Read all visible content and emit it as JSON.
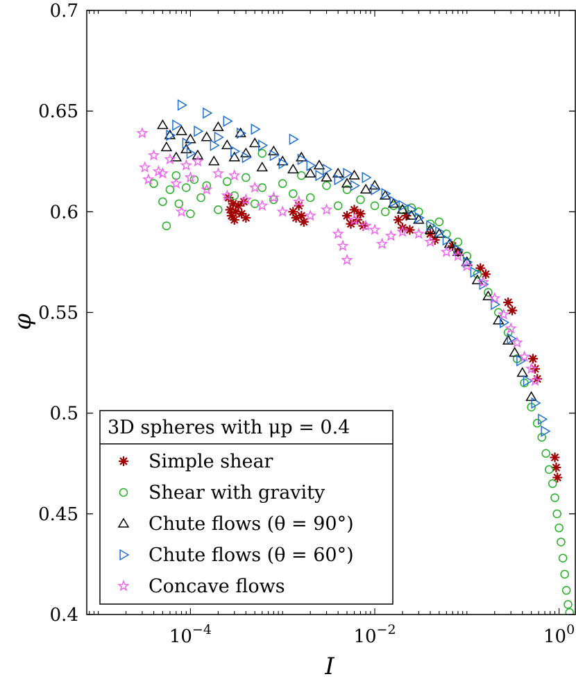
{
  "chart_data": {
    "type": "scatter",
    "title": "",
    "xlabel": "I",
    "ylabel": "φ",
    "xscale": "log",
    "xlim": [
      7.5e-06,
      1.5
    ],
    "ylim": [
      0.4,
      0.7
    ],
    "x_ticks": [
      {
        "value": 0.0001,
        "base": "10",
        "exp": "−4"
      },
      {
        "value": 0.01,
        "base": "10",
        "exp": "−2"
      },
      {
        "value": 1,
        "base": "10",
        "exp": "0"
      }
    ],
    "y_ticks": [
      {
        "value": 0.4,
        "label": "0.4"
      },
      {
        "value": 0.45,
        "label": "0.45"
      },
      {
        "value": 0.5,
        "label": "0.5"
      },
      {
        "value": 0.55,
        "label": "0.55"
      },
      {
        "value": 0.6,
        "label": "0.6"
      },
      {
        "value": 0.65,
        "label": "0.65"
      },
      {
        "value": 0.7,
        "label": "0.7"
      }
    ],
    "legend": {
      "title": "3D spheres with μp = 0.4",
      "position": "bottom-left"
    },
    "series": [
      {
        "name": "Simple shear",
        "marker": "asterisk",
        "color": "#a00000",
        "points": [
          [
            0.00026,
            0.607
          ],
          [
            0.00027,
            0.601
          ],
          [
            0.00028,
            0.598
          ],
          [
            0.00029,
            0.604
          ],
          [
            0.0003,
            0.596
          ],
          [
            0.00031,
            0.6
          ],
          [
            0.00033,
            0.603
          ],
          [
            0.00036,
            0.599
          ],
          [
            0.00038,
            0.605
          ],
          [
            0.0004,
            0.597
          ],
          [
            0.0013,
            0.6
          ],
          [
            0.0014,
            0.597
          ],
          [
            0.0015,
            0.603
          ],
          [
            0.0016,
            0.598
          ],
          [
            0.0017,
            0.595
          ],
          [
            0.005,
            0.598
          ],
          [
            0.0055,
            0.594
          ],
          [
            0.006,
            0.601
          ],
          [
            0.0065,
            0.596
          ],
          [
            0.007,
            0.599
          ],
          [
            0.0075,
            0.593
          ],
          [
            0.018,
            0.596
          ],
          [
            0.02,
            0.592
          ],
          [
            0.022,
            0.598
          ],
          [
            0.024,
            0.591
          ],
          [
            0.04,
            0.589
          ],
          [
            0.045,
            0.586
          ],
          [
            0.07,
            0.583
          ],
          [
            0.08,
            0.58
          ],
          [
            0.14,
            0.572
          ],
          [
            0.16,
            0.569
          ],
          [
            0.28,
            0.555
          ],
          [
            0.31,
            0.551
          ],
          [
            0.52,
            0.527
          ],
          [
            0.55,
            0.522
          ],
          [
            0.58,
            0.517
          ],
          [
            0.9,
            0.478
          ],
          [
            0.93,
            0.473
          ],
          [
            0.96,
            0.468
          ]
        ]
      },
      {
        "name": "Shear with gravity",
        "marker": "circle",
        "color": "#22b022",
        "points": [
          [
            4e-05,
            0.614
          ],
          [
            5e-05,
            0.605
          ],
          [
            5.5e-05,
            0.593
          ],
          [
            6e-05,
            0.611
          ],
          [
            7e-05,
            0.618
          ],
          [
            7.5e-05,
            0.604
          ],
          [
            9e-05,
            0.612
          ],
          [
            0.0001,
            0.599
          ],
          [
            0.00011,
            0.616
          ],
          [
            0.00013,
            0.607
          ],
          [
            0.00015,
            0.613
          ],
          [
            0.0002,
            0.601
          ],
          [
            0.00025,
            0.615
          ],
          [
            0.0003,
            0.608
          ],
          [
            0.0004,
            0.617
          ],
          [
            0.0005,
            0.604
          ],
          [
            0.0006,
            0.612
          ],
          [
            0.0008,
            0.606
          ],
          [
            0.001,
            0.614
          ],
          [
            0.0013,
            0.609
          ],
          [
            0.0016,
            0.618
          ],
          [
            0.002,
            0.607
          ],
          [
            0.003,
            0.613
          ],
          [
            0.004,
            0.603
          ],
          [
            0.005,
            0.611
          ],
          [
            0.0006,
            0.629
          ],
          [
            0.007,
            0.606
          ],
          [
            0.01,
            0.603
          ],
          [
            0.013,
            0.6
          ],
          [
            0.016,
            0.603
          ],
          [
            0.02,
            0.601
          ],
          [
            0.025,
            0.602
          ],
          [
            0.03,
            0.6
          ],
          [
            0.04,
            0.594
          ],
          [
            0.05,
            0.595
          ],
          [
            0.06,
            0.589
          ],
          [
            0.08,
            0.585
          ],
          [
            0.1,
            0.578
          ],
          [
            0.13,
            0.569
          ],
          [
            0.17,
            0.56
          ],
          [
            0.22,
            0.55
          ],
          [
            0.28,
            0.54
          ],
          [
            0.35,
            0.527
          ],
          [
            0.42,
            0.515
          ],
          [
            0.5,
            0.503
          ],
          [
            0.58,
            0.495
          ],
          [
            0.65,
            0.488
          ],
          [
            0.72,
            0.48
          ],
          [
            0.78,
            0.472
          ],
          [
            0.85,
            0.465
          ],
          [
            0.9,
            0.458
          ],
          [
            0.95,
            0.45
          ],
          [
            1.0,
            0.443
          ],
          [
            1.05,
            0.436
          ],
          [
            1.1,
            0.428
          ],
          [
            1.15,
            0.42
          ],
          [
            1.2,
            0.412
          ],
          [
            1.25,
            0.405
          ],
          [
            1.3,
            0.401
          ]
        ]
      },
      {
        "name": "Chute flows (θ = 90°)",
        "marker": "triangle-up",
        "color": "#000000",
        "points": [
          [
            5e-05,
            0.643
          ],
          [
            5.5e-05,
            0.632
          ],
          [
            6e-05,
            0.638
          ],
          [
            7e-05,
            0.627
          ],
          [
            8e-05,
            0.64
          ],
          [
            9e-05,
            0.631
          ],
          [
            0.0001,
            0.636
          ],
          [
            0.00012,
            0.628
          ],
          [
            0.00015,
            0.637
          ],
          [
            0.00018,
            0.625
          ],
          [
            0.0002,
            0.642
          ],
          [
            0.00025,
            0.633
          ],
          [
            0.0003,
            0.627
          ],
          [
            0.00035,
            0.639
          ],
          [
            0.0004,
            0.629
          ],
          [
            0.0005,
            0.634
          ],
          [
            0.0006,
            0.622
          ],
          [
            0.0008,
            0.63
          ],
          [
            0.001,
            0.625
          ],
          [
            0.0013,
            0.621
          ],
          [
            0.0016,
            0.627
          ],
          [
            0.002,
            0.619
          ],
          [
            0.0025,
            0.623
          ],
          [
            0.003,
            0.617
          ],
          [
            0.004,
            0.619
          ],
          [
            0.005,
            0.614
          ],
          [
            0.006,
            0.618
          ],
          [
            0.008,
            0.611
          ],
          [
            0.01,
            0.613
          ],
          [
            0.013,
            0.608
          ],
          [
            0.016,
            0.604
          ],
          [
            0.02,
            0.601
          ],
          [
            0.025,
            0.598
          ],
          [
            0.03,
            0.596
          ],
          [
            0.04,
            0.591
          ],
          [
            0.05,
            0.589
          ],
          [
            0.065,
            0.584
          ],
          [
            0.08,
            0.58
          ],
          [
            0.1,
            0.575
          ],
          [
            0.13,
            0.566
          ],
          [
            0.17,
            0.558
          ],
          [
            0.22,
            0.546
          ],
          [
            0.28,
            0.536
          ],
          [
            0.33,
            0.53
          ],
          [
            0.4,
            0.52
          ],
          [
            0.5,
            0.508
          ]
        ]
      },
      {
        "name": "Chute flows (θ = 60°)",
        "marker": "triangle-right",
        "color": "#1f6fd0",
        "points": [
          [
            6e-05,
            0.638
          ],
          [
            7e-05,
            0.643
          ],
          [
            8e-05,
            0.653
          ],
          [
            9e-05,
            0.634
          ],
          [
            0.0001,
            0.629
          ],
          [
            0.00012,
            0.64
          ],
          [
            0.00015,
            0.649
          ],
          [
            0.00018,
            0.633
          ],
          [
            0.0002,
            0.637
          ],
          [
            0.00025,
            0.645
          ],
          [
            0.0003,
            0.63
          ],
          [
            0.00035,
            0.639
          ],
          [
            0.0004,
            0.627
          ],
          [
            0.0005,
            0.641
          ],
          [
            0.0006,
            0.633
          ],
          [
            0.0008,
            0.628
          ],
          [
            0.001,
            0.624
          ],
          [
            0.0013,
            0.636
          ],
          [
            0.0016,
            0.626
          ],
          [
            0.002,
            0.623
          ],
          [
            0.0025,
            0.618
          ],
          [
            0.003,
            0.621
          ],
          [
            0.004,
            0.616
          ],
          [
            0.005,
            0.619
          ],
          [
            0.006,
            0.613
          ],
          [
            0.008,
            0.617
          ],
          [
            0.01,
            0.611
          ],
          [
            0.013,
            0.609
          ],
          [
            0.016,
            0.605
          ],
          [
            0.02,
            0.603
          ],
          [
            0.025,
            0.601
          ],
          [
            0.03,
            0.597
          ],
          [
            0.04,
            0.593
          ],
          [
            0.05,
            0.59
          ],
          [
            0.06,
            0.586
          ],
          [
            0.08,
            0.581
          ],
          [
            0.1,
            0.575
          ],
          [
            0.12,
            0.57
          ],
          [
            0.15,
            0.564
          ],
          [
            0.2,
            0.554
          ],
          [
            0.25,
            0.545
          ],
          [
            0.3,
            0.537
          ],
          [
            0.38,
            0.526
          ],
          [
            0.45,
            0.516
          ],
          [
            0.55,
            0.505
          ],
          [
            0.65,
            0.497
          ],
          [
            0.7,
            0.491
          ]
        ]
      },
      {
        "name": "Concave flows",
        "marker": "star",
        "color": "#ee66ee",
        "points": [
          [
            3e-05,
            0.639
          ],
          [
            3.2e-05,
            0.622
          ],
          [
            3.5e-05,
            0.616
          ],
          [
            4e-05,
            0.628
          ],
          [
            4.5e-05,
            0.62
          ],
          [
            5e-05,
            0.619
          ],
          [
            6e-05,
            0.626
          ],
          [
            7e-05,
            0.614
          ],
          [
            8e-05,
            0.6
          ],
          [
            9e-05,
            0.623
          ],
          [
            0.0001,
            0.617
          ],
          [
            0.00012,
            0.625
          ],
          [
            0.00015,
            0.611
          ],
          [
            0.0002,
            0.619
          ],
          [
            0.00025,
            0.608
          ],
          [
            0.0003,
            0.618
          ],
          [
            0.0004,
            0.606
          ],
          [
            0.0005,
            0.612
          ],
          [
            0.0006,
            0.603
          ],
          [
            0.0008,
            0.607
          ],
          [
            0.001,
            0.6
          ],
          [
            0.0015,
            0.605
          ],
          [
            0.002,
            0.598
          ],
          [
            0.003,
            0.601
          ],
          [
            0.004,
            0.589
          ],
          [
            0.0045,
            0.583
          ],
          [
            0.005,
            0.576
          ],
          [
            0.006,
            0.596
          ],
          [
            0.008,
            0.593
          ],
          [
            0.01,
            0.591
          ],
          [
            0.012,
            0.584
          ],
          [
            0.015,
            0.588
          ],
          [
            0.02,
            0.59
          ],
          [
            0.03,
            0.589
          ],
          [
            0.04,
            0.585
          ],
          [
            0.06,
            0.58
          ],
          [
            0.08,
            0.578
          ],
          [
            0.1,
            0.573
          ],
          [
            0.15,
            0.565
          ],
          [
            0.2,
            0.557
          ],
          [
            0.25,
            0.549
          ],
          [
            0.3,
            0.542
          ],
          [
            0.35,
            0.535
          ],
          [
            0.42,
            0.528
          ],
          [
            0.5,
            0.522
          ],
          [
            0.55,
            0.516
          ]
        ]
      }
    ]
  }
}
